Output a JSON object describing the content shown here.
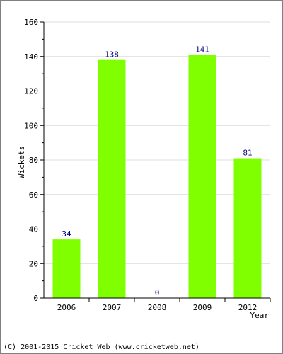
{
  "chart_data": {
    "type": "bar",
    "categories": [
      "2006",
      "2007",
      "2008",
      "2009",
      "2012"
    ],
    "values": [
      34,
      138,
      0,
      141,
      81
    ],
    "data_labels": [
      "34",
      "138",
      "0",
      "141",
      "81"
    ],
    "title": "",
    "xlabel": "Year",
    "ylabel": "Wickets",
    "ylim": [
      0,
      160
    ],
    "yticks": [
      0,
      20,
      40,
      60,
      80,
      100,
      120,
      140,
      160
    ],
    "grid": true,
    "legend": "none"
  },
  "colors": {
    "bar": "#80ff00",
    "grid": "#dcdcdc",
    "axis": "#000000",
    "value_label": "#000080",
    "frame": "#808080"
  },
  "footer": {
    "credit": "(C) 2001-2015 Cricket Web (www.cricketweb.net)"
  }
}
